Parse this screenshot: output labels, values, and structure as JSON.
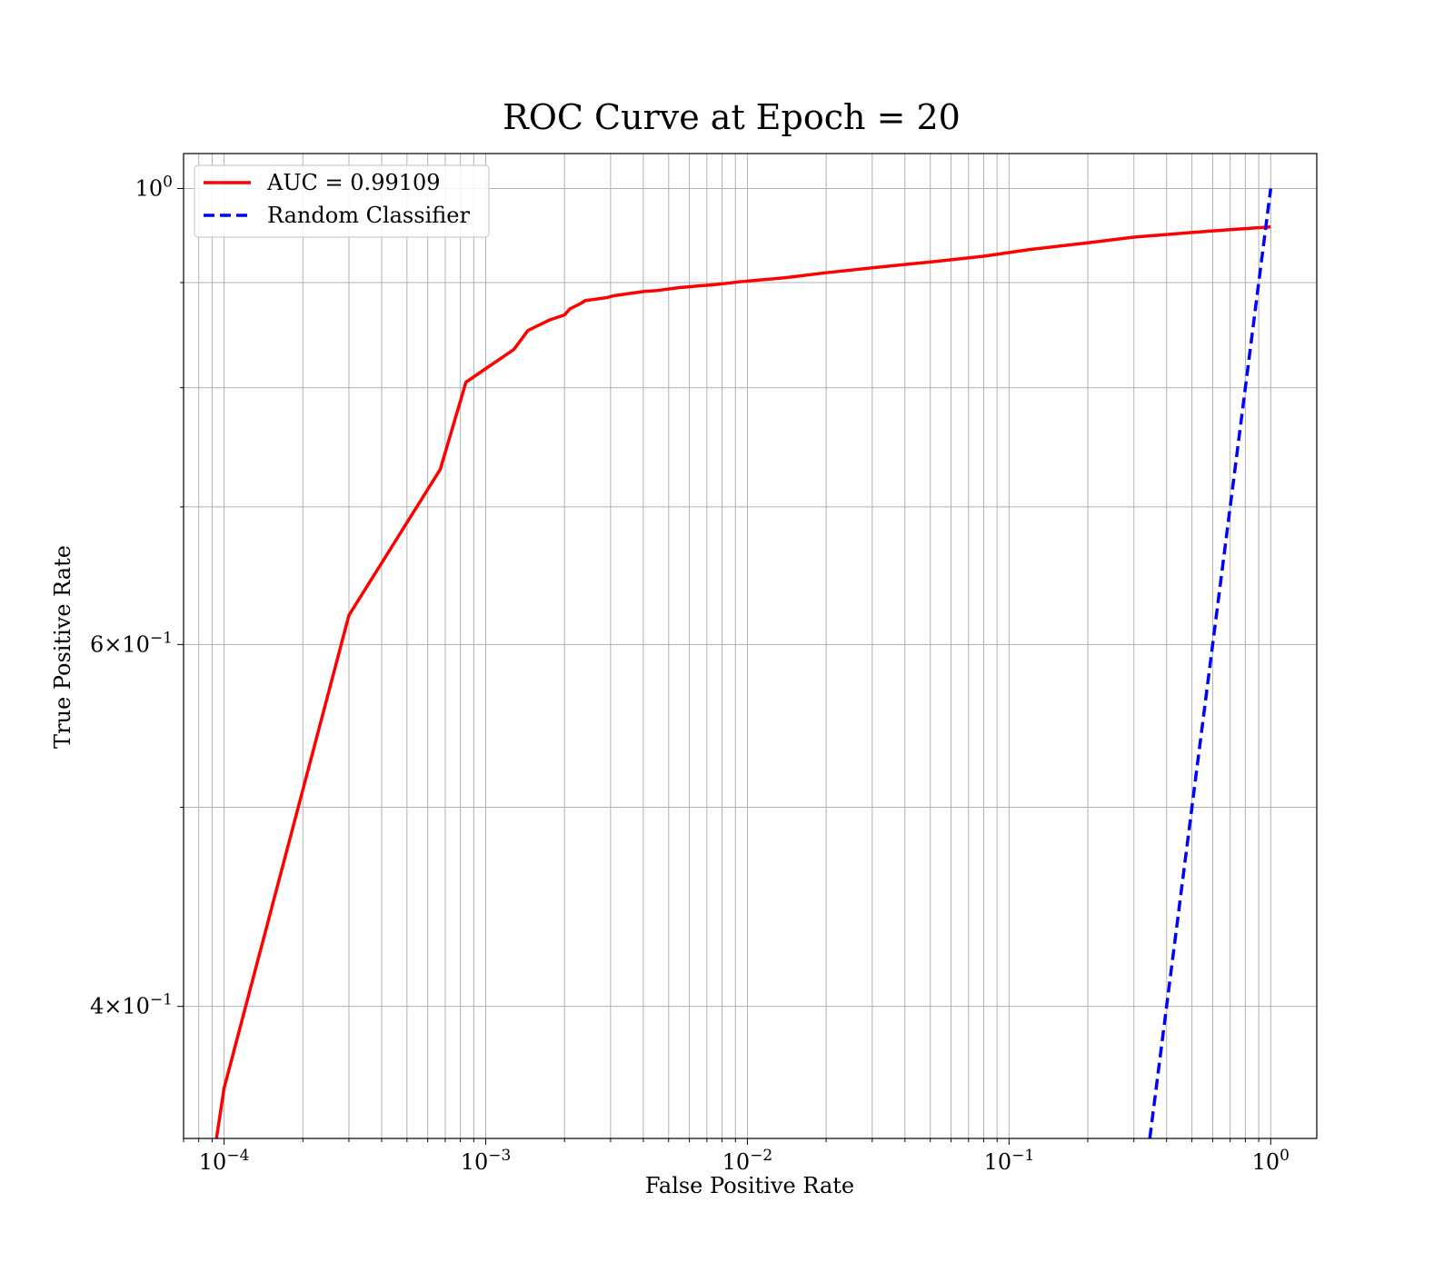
{
  "chart_data": {
    "type": "line",
    "title": "ROC Curve at Epoch = 20",
    "xlabel": "False Positive Rate",
    "ylabel": "True Positive Rate",
    "x_scale": "log",
    "y_scale": "log",
    "xlim": [
      7e-05,
      1.5
    ],
    "ylim": [
      0.345,
      1.04
    ],
    "grid": true,
    "grid_minor": true,
    "legend_position": "top-left",
    "x_ticks": [
      {
        "value": 0.0001,
        "base": "10",
        "exp": "−4"
      },
      {
        "value": 0.001,
        "base": "10",
        "exp": "−3"
      },
      {
        "value": 0.01,
        "base": "10",
        "exp": "−2"
      },
      {
        "value": 0.1,
        "base": "10",
        "exp": "−1"
      },
      {
        "value": 1,
        "base": "10",
        "exp": "0"
      }
    ],
    "y_ticks": [
      {
        "value": 1.0,
        "mantissa": "",
        "base": "10",
        "exp": "0"
      },
      {
        "value": 0.6,
        "mantissa": "6",
        "base": "10",
        "exp": "−1"
      },
      {
        "value": 0.4,
        "mantissa": "4",
        "base": "10",
        "exp": "−1"
      }
    ],
    "y_minor_grid": [
      0.9,
      0.8,
      0.7,
      0.5
    ],
    "series": [
      {
        "name": "AUC = 0.99109",
        "color": "#ff0000",
        "style": "solid",
        "x": [
          9.35e-05,
          0.0001,
          0.0003,
          0.00067,
          0.00084,
          0.00128,
          0.00145,
          0.00175,
          0.002,
          0.0021,
          0.0023,
          0.0024,
          0.0029,
          0.0031,
          0.004,
          0.0045,
          0.0055,
          0.0075,
          0.0095,
          0.014,
          0.02,
          0.03,
          0.05,
          0.08,
          0.12,
          0.2,
          0.3,
          0.5,
          0.7,
          1.0
        ],
        "y": [
          0.345,
          0.365,
          0.62,
          0.73,
          0.805,
          0.835,
          0.853,
          0.863,
          0.868,
          0.874,
          0.879,
          0.882,
          0.885,
          0.887,
          0.891,
          0.892,
          0.895,
          0.898,
          0.901,
          0.905,
          0.91,
          0.915,
          0.921,
          0.927,
          0.934,
          0.941,
          0.947,
          0.952,
          0.955,
          0.958
        ]
      },
      {
        "name": "Random Classifier",
        "color": "#0000ff",
        "style": "dashed",
        "x": [
          0.345,
          1.0
        ],
        "y": [
          0.345,
          1.0
        ]
      }
    ]
  }
}
